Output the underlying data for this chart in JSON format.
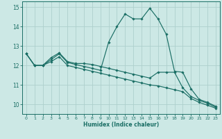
{
  "xlabel": "Humidex (Indice chaleur)",
  "bg_color": "#cce8e5",
  "grid_color": "#aed0cc",
  "line_color": "#1a6e65",
  "xlim": [
    -0.5,
    23.5
  ],
  "ylim": [
    9.5,
    15.3
  ],
  "xticks": [
    0,
    1,
    2,
    3,
    4,
    5,
    6,
    7,
    8,
    9,
    10,
    11,
    12,
    13,
    14,
    15,
    16,
    17,
    18,
    19,
    20,
    21,
    22,
    23
  ],
  "yticks": [
    10,
    11,
    12,
    13,
    14,
    15
  ],
  "line1_x": [
    0,
    1,
    2,
    3,
    4,
    5,
    6,
    7,
    8,
    9,
    10,
    11,
    12,
    13,
    14,
    15,
    16,
    17,
    18,
    19,
    20,
    21,
    22,
    23
  ],
  "line1_y": [
    12.6,
    12.0,
    12.0,
    12.3,
    12.6,
    12.15,
    12.05,
    11.95,
    11.85,
    11.75,
    13.2,
    14.0,
    14.65,
    14.4,
    14.4,
    14.95,
    14.4,
    13.6,
    11.7,
    11.65,
    10.8,
    10.25,
    10.1,
    9.9
  ],
  "line2_x": [
    0,
    1,
    2,
    3,
    4,
    5,
    6,
    7,
    8,
    9,
    10,
    11,
    12,
    13,
    14,
    15,
    16,
    17,
    18,
    19,
    20,
    21,
    22,
    23
  ],
  "line2_y": [
    12.6,
    12.0,
    12.0,
    12.4,
    12.65,
    12.2,
    12.1,
    12.1,
    12.05,
    11.95,
    11.85,
    11.75,
    11.65,
    11.55,
    11.45,
    11.35,
    11.65,
    11.65,
    11.65,
    10.85,
    10.4,
    10.2,
    10.05,
    9.85
  ],
  "line3_x": [
    0,
    1,
    2,
    3,
    4,
    5,
    6,
    7,
    8,
    9,
    10,
    11,
    12,
    13,
    14,
    15,
    16,
    17,
    18,
    19,
    20,
    21,
    22,
    23
  ],
  "line3_y": [
    12.6,
    12.0,
    12.0,
    12.2,
    12.45,
    12.0,
    11.9,
    11.8,
    11.7,
    11.6,
    11.5,
    11.4,
    11.3,
    11.2,
    11.1,
    11.0,
    10.95,
    10.85,
    10.75,
    10.65,
    10.3,
    10.1,
    9.95,
    9.8
  ]
}
